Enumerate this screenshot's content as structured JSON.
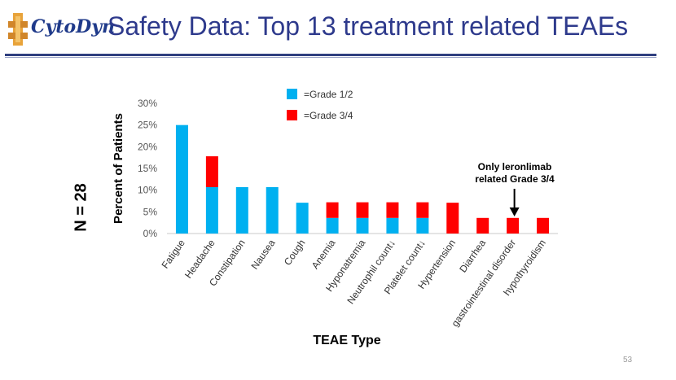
{
  "slide": {
    "logo_text": "CytoDyn",
    "title": "Safety Data: Top 13 treatment related TEAEs",
    "n_label": "N = 28",
    "page_number": "53"
  },
  "chart_data": {
    "type": "bar",
    "stacked": true,
    "title": "",
    "xlabel": "TEAE Type",
    "ylabel": "Percent of Patients",
    "ylim": [
      0,
      30
    ],
    "yticks": [
      "0%",
      "5%",
      "10%",
      "15%",
      "20%",
      "25%",
      "30%"
    ],
    "categories": [
      "Fatigue",
      "Headache",
      "Constipation",
      "Nausea",
      "Cough",
      "Anemia",
      "Hyponatremia",
      "Neutrophil count↓",
      "Platelet count↓",
      "Hypertension",
      "Diarrhea",
      "gastrointestinal disorder",
      "hypothyroidism"
    ],
    "series": [
      {
        "name": "=Grade 1/2",
        "color": "#00b0f0",
        "values": [
          25,
          10.7,
          10.7,
          10.7,
          7.1,
          3.6,
          3.6,
          3.6,
          3.6,
          0,
          0,
          0,
          0
        ]
      },
      {
        "name": "=Grade 3/4",
        "color": "#ff0000",
        "values": [
          0,
          7.1,
          0,
          0,
          0,
          3.6,
          3.6,
          3.6,
          3.6,
          7.1,
          3.6,
          3.6,
          3.6
        ]
      }
    ],
    "legend_position": "top",
    "grid": false,
    "annotation": {
      "lines": [
        "Only leronlimab",
        "related Grade 3/4"
      ],
      "category": "gastrointestinal disorder"
    }
  },
  "colors": {
    "title": "#2e3a8c",
    "rule": "#2f3f7f"
  }
}
